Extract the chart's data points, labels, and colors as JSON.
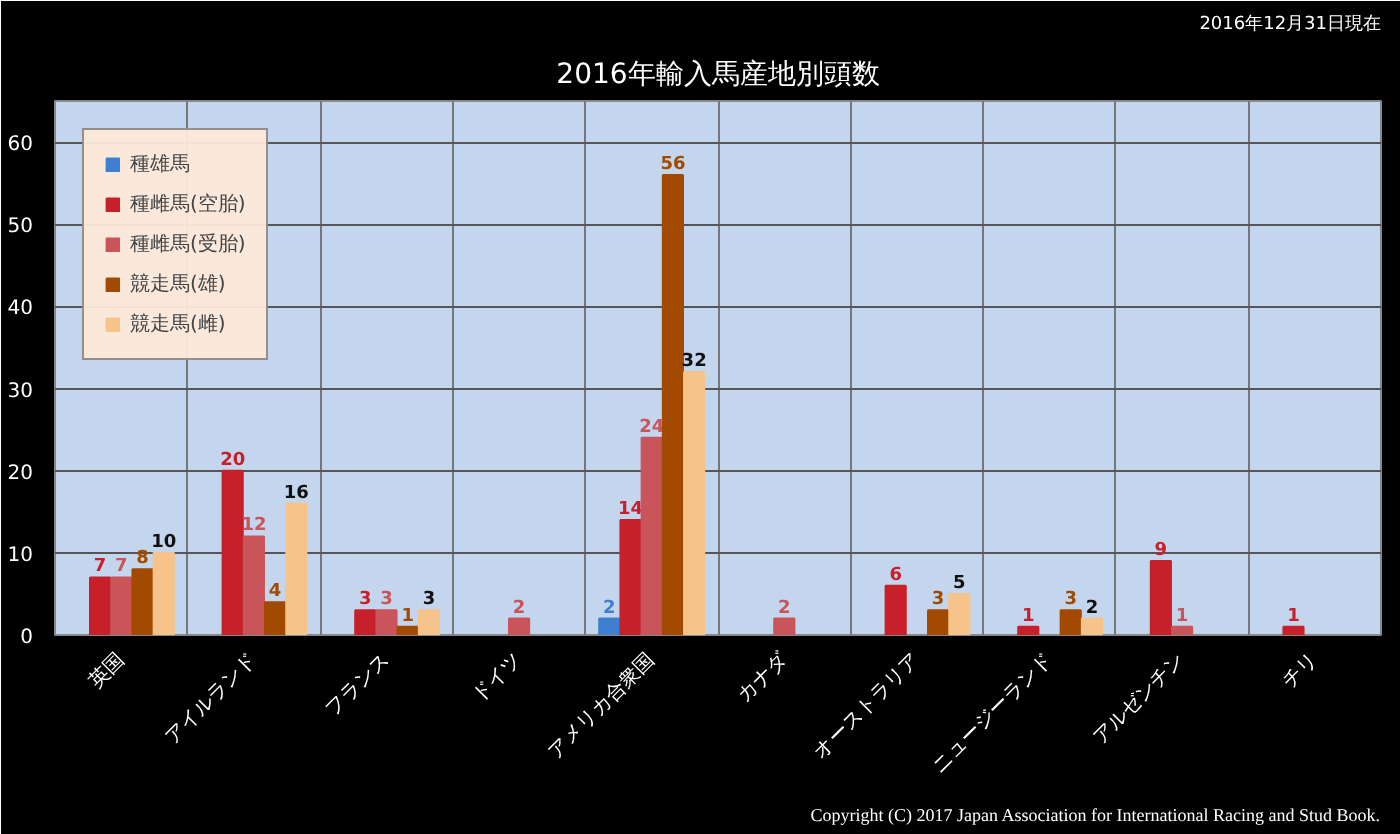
{
  "chart_data": {
    "type": "bar",
    "title": "2016年輸入馬産地別頭数",
    "subtitle": "2016年12月31日現在",
    "categories": [
      "英国",
      "アイルランド",
      "フランス",
      "ドイツ",
      "アメリカ合衆国",
      "カナダ",
      "オーストラリア",
      "ニュージーランド",
      "アルゼンチン",
      "チリ"
    ],
    "series": [
      {
        "name": "種雄馬",
        "color": "#3f7fcf",
        "values": [
          null,
          null,
          null,
          null,
          2,
          null,
          null,
          null,
          null,
          null
        ]
      },
      {
        "name": "種雌馬(空胎)",
        "color": "#c8202a",
        "values": [
          7,
          20,
          3,
          null,
          14,
          null,
          6,
          1,
          9,
          1
        ]
      },
      {
        "name": "種雌馬(受胎)",
        "color": "#c9545a",
        "values": [
          7,
          12,
          3,
          2,
          24,
          2,
          null,
          null,
          1,
          null
        ]
      },
      {
        "name": "競走馬(雄)",
        "color": "#a24a00",
        "values": [
          8,
          4,
          1,
          null,
          56,
          null,
          3,
          3,
          null,
          null
        ]
      },
      {
        "name": "競走馬(雌)",
        "color": "#f6c38a",
        "values": [
          10,
          16,
          3,
          null,
          32,
          null,
          5,
          2,
          null,
          null
        ]
      }
    ],
    "ylim": [
      0,
      65
    ],
    "yticks": [
      0,
      10,
      20,
      30,
      40,
      50,
      60
    ],
    "grid": true,
    "legend": "top left",
    "data_labels": true,
    "annotations": [
      "Copyright (C) 2017 Japan Association for International Racing and Stud Book."
    ]
  }
}
